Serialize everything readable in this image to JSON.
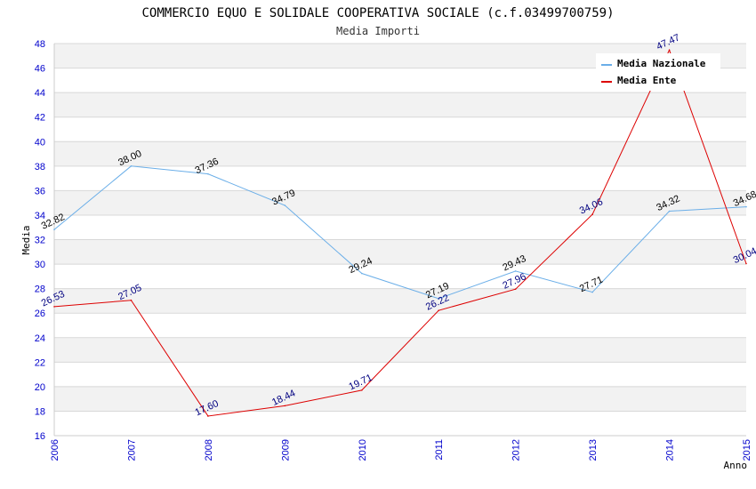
{
  "chart_data": {
    "type": "line",
    "title": "COMMERCIO EQUO E SOLIDALE COOPERATIVA SOCIALE (c.f.03499700759)",
    "subtitle": "Media Importi",
    "xlabel": "Anno",
    "ylabel": "Media",
    "x": [
      "2006",
      "2007",
      "2008",
      "2009",
      "2010",
      "2011",
      "2012",
      "2013",
      "2014",
      "2015"
    ],
    "ylim": [
      16,
      48
    ],
    "yticks": [
      "16",
      "18",
      "20",
      "22",
      "24",
      "26",
      "28",
      "30",
      "32",
      "34",
      "36",
      "38",
      "40",
      "42",
      "44",
      "46",
      "48"
    ],
    "legend_position": "top-right",
    "series": [
      {
        "name": "Media Nazionale",
        "color": "#6aaee8",
        "values": [
          32.82,
          38.0,
          37.36,
          34.79,
          29.24,
          27.19,
          29.43,
          27.71,
          34.32,
          34.68
        ],
        "labels": [
          "32.82",
          "38.00",
          "37.36",
          "34.79",
          "29.24",
          "27.19",
          "29.43",
          "27.71",
          "34.32",
          "34.68"
        ]
      },
      {
        "name": "Media Ente",
        "color": "#dd0000",
        "values": [
          26.53,
          27.05,
          17.6,
          18.44,
          19.71,
          26.22,
          27.96,
          34.06,
          47.47,
          30.04
        ],
        "labels": [
          "26.53",
          "27.05",
          "17.60",
          "18.44",
          "19.71",
          "26.22",
          "27.96",
          "34.06",
          "47.47",
          "30.04"
        ]
      }
    ]
  }
}
